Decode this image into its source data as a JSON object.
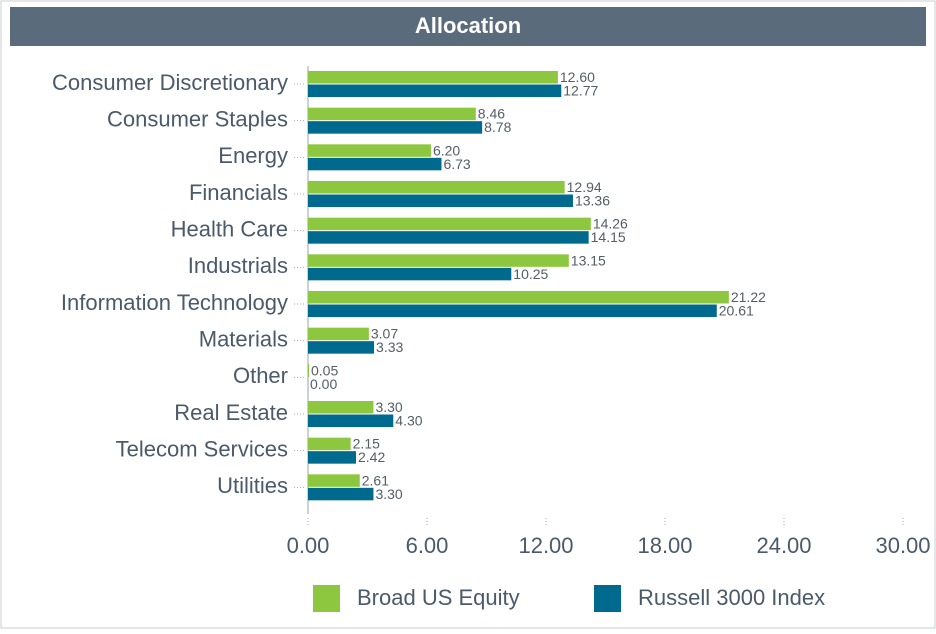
{
  "chart_data": {
    "type": "bar",
    "orientation": "horizontal",
    "title": "Allocation",
    "categories": [
      "Consumer Discretionary",
      "Consumer Staples",
      "Energy",
      "Financials",
      "Health Care",
      "Industrials",
      "Information Technology",
      "Materials",
      "Other",
      "Real Estate",
      "Telecom Services",
      "Utilities"
    ],
    "series": [
      {
        "name": "Broad US Equity",
        "color": "#8dc63f",
        "values": [
          12.6,
          8.46,
          6.2,
          12.94,
          14.26,
          13.15,
          21.22,
          3.07,
          0.05,
          3.3,
          2.15,
          2.61
        ],
        "value_labels": [
          "12.60",
          "8.46",
          "6.20",
          "12.94",
          "14.26",
          "13.15",
          "21.22",
          "3.07",
          "0.05",
          "3.30",
          "2.15",
          "2.61"
        ]
      },
      {
        "name": "Russell 3000 Index",
        "color": "#006a8e",
        "values": [
          12.77,
          8.78,
          6.73,
          13.36,
          14.15,
          10.25,
          20.61,
          3.33,
          0,
          4.3,
          2.42,
          3.3
        ],
        "value_labels": [
          "12.77",
          "8.78",
          "6.73",
          "13.36",
          "14.15",
          "10.25",
          "20.61",
          "3.33",
          "0.00",
          "4.30",
          "2.42",
          "3.30"
        ]
      }
    ],
    "xlim": [
      0,
      30
    ],
    "xticks": [
      {
        "value": 0,
        "label": "0.00"
      },
      {
        "value": 6,
        "label": "6.00"
      },
      {
        "value": 12,
        "label": "12.00"
      },
      {
        "value": 18,
        "label": "18.00"
      },
      {
        "value": 24,
        "label": "24.00"
      },
      {
        "value": 30,
        "label": "30.00"
      }
    ],
    "legend": "bottom"
  }
}
